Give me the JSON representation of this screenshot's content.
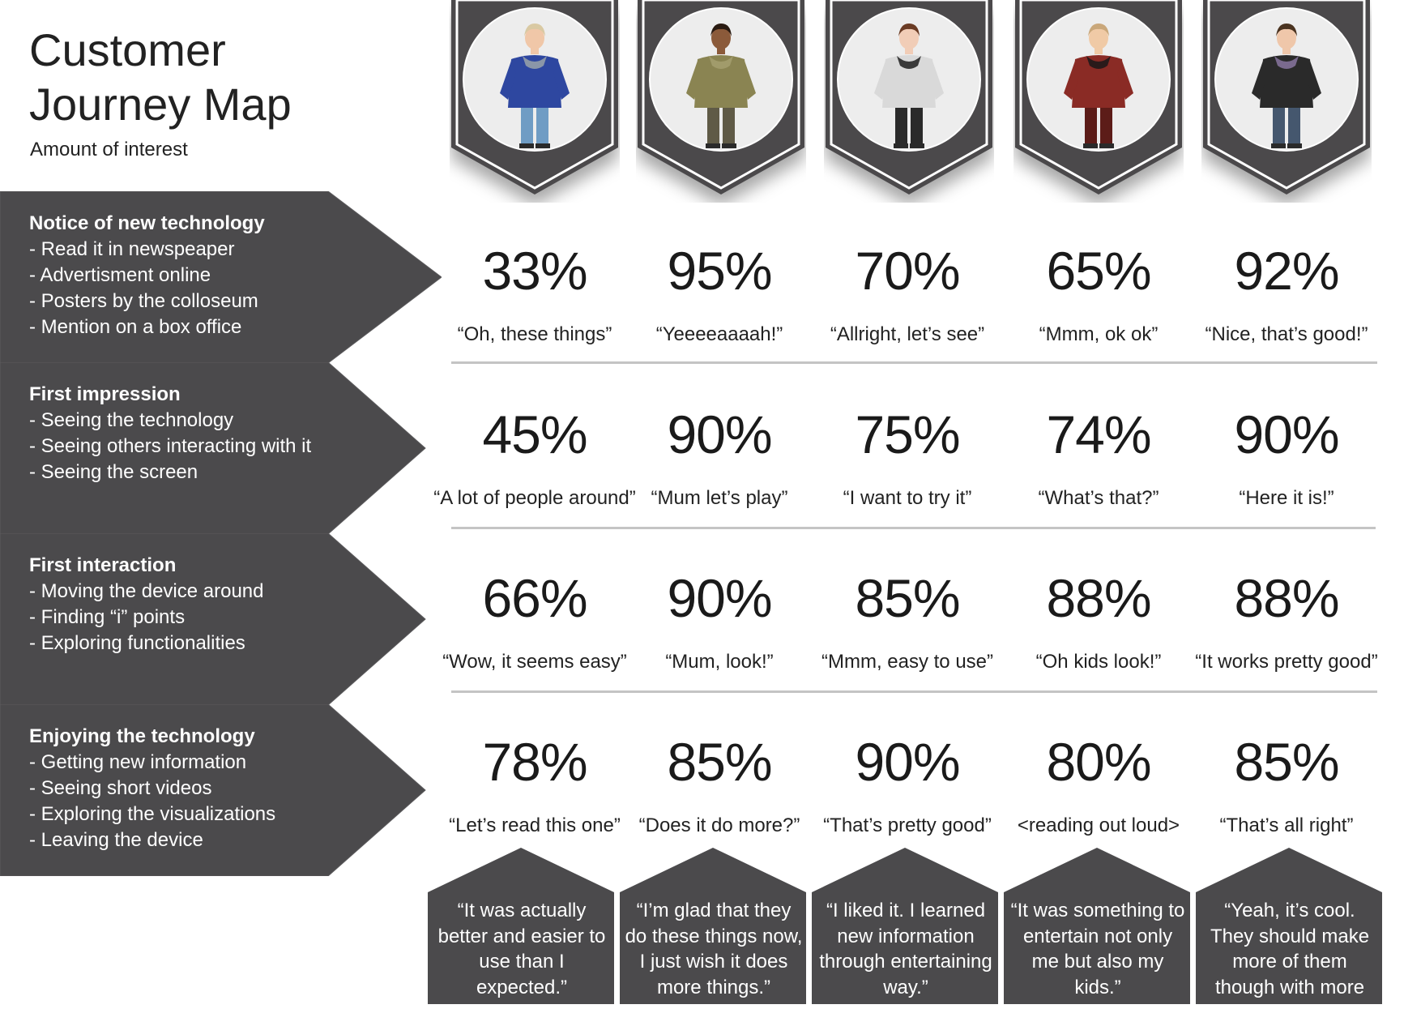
{
  "header": {
    "title": "Customer Journey Map",
    "subtitle": "Amount of interest"
  },
  "colors": {
    "panel": "#4b4a4c",
    "badge_border": "#ffffff",
    "divider": "#c4c4c4",
    "text_dark": "#1e1e1e",
    "text_light": "#ffffff"
  },
  "personas": [
    {
      "icon": "elderly-woman-portrait-icon",
      "clothing": "#2e47a0",
      "pants": "#6f9cc4",
      "accent": "#8a96a8",
      "skin": "#f0c7a8",
      "hair": "#d9c9a3"
    },
    {
      "icon": "child-portrait-icon",
      "clothing": "#8a8452",
      "pants": "#5f5a46",
      "accent": "#a19b6b",
      "skin": "#8b5a3a",
      "hair": "#2a1b12"
    },
    {
      "icon": "young-woman-portrait-icon",
      "clothing": "#d9d9d9",
      "pants": "#2a2a2a",
      "accent": "#3a3a3a",
      "skin": "#f1cdb7",
      "hair": "#6a3b24"
    },
    {
      "icon": "woman-red-dress-portrait-icon",
      "clothing": "#8a2b25",
      "pants": "#5c1c18",
      "accent": "#2a1a1a",
      "skin": "#f0caa6",
      "hair": "#c9a77a"
    },
    {
      "icon": "young-man-leather-jacket-portrait-icon",
      "clothing": "#2a2a2a",
      "pants": "#45576e",
      "accent": "#7a6a8e",
      "skin": "#efc7aa",
      "hair": "#4a3320"
    }
  ],
  "stages": [
    {
      "title": "Notice of new technology",
      "points": [
        "- Read it in newspeaper",
        "- Advertisment online",
        "- Posters by the colloseum",
        "- Mention on a box office"
      ],
      "cells": [
        {
          "percent": "33%",
          "quote": "“Oh, these things”"
        },
        {
          "percent": "95%",
          "quote": "“Yeeeeaaaah!”"
        },
        {
          "percent": "70%",
          "quote": "“Allright, let’s see”"
        },
        {
          "percent": "65%",
          "quote": "“Mmm, ok ok”"
        },
        {
          "percent": "92%",
          "quote": "“Nice, that’s good!”"
        }
      ]
    },
    {
      "title": "First impression",
      "points": [
        "- Seeing the technology",
        "- Seeing others interacting with it",
        "- Seeing the screen"
      ],
      "cells": [
        {
          "percent": "45%",
          "quote": "“A lot of people around”"
        },
        {
          "percent": "90%",
          "quote": "“Mum let’s play”"
        },
        {
          "percent": "75%",
          "quote": "“I want to try it”"
        },
        {
          "percent": "74%",
          "quote": "“What’s that?”"
        },
        {
          "percent": "90%",
          "quote": "“Here it is!”"
        }
      ]
    },
    {
      "title": "First interaction",
      "points": [
        "- Moving the device around",
        "- Finding “i” points",
        "- Exploring functionalities"
      ],
      "cells": [
        {
          "percent": "66%",
          "quote": "“Wow, it seems easy”"
        },
        {
          "percent": "90%",
          "quote": "“Mum, look!”"
        },
        {
          "percent": "85%",
          "quote": "“Mmm, easy to use”"
        },
        {
          "percent": "88%",
          "quote": "“Oh kids look!”"
        },
        {
          "percent": "88%",
          "quote": "“It works pretty good”"
        }
      ]
    },
    {
      "title": "Enjoying the technology",
      "points": [
        "- Getting new information",
        "- Seeing short videos",
        "- Exploring the visualizations",
        "- Leaving the device"
      ],
      "cells": [
        {
          "percent": "78%",
          "quote": "“Let’s read this one”"
        },
        {
          "percent": "85%",
          "quote": "“Does it do more?”"
        },
        {
          "percent": "90%",
          "quote": "“That’s pretty good”"
        },
        {
          "percent": "80%",
          "quote": "<reading out loud>"
        },
        {
          "percent": "85%",
          "quote": "“That’s all right”"
        }
      ]
    }
  ],
  "final_quotes": [
    "“It was actually better and easier to use than I expected.”",
    "“I’m glad that they do these things now, I just wish it does more things.”",
    "“I liked it. I learned new information through entertaining way.”",
    "“It was something to entertain not only me but also my kids.”",
    "“Yeah, it’s cool. They should make more of them though with more features too.”"
  ]
}
